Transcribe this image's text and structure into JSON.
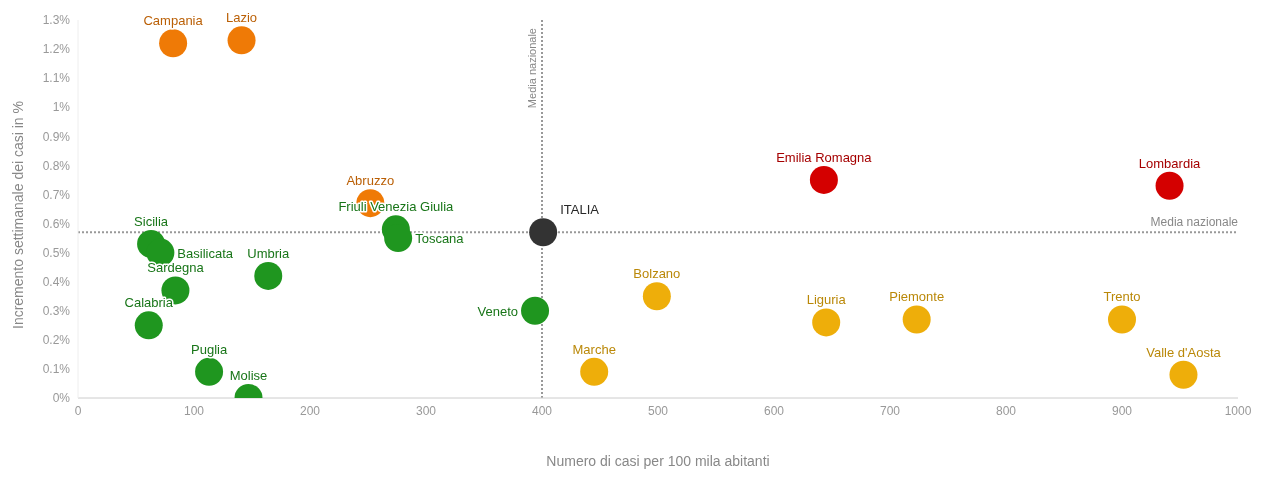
{
  "chart_data": {
    "type": "scatter",
    "xlabel": "Numero di casi per 100 mila abitanti",
    "ylabel": "Incremento settimanale dei casi in %",
    "xlim": [
      0,
      1000
    ],
    "xticks": [
      0,
      100,
      200,
      300,
      400,
      500,
      600,
      700,
      800,
      900,
      1000
    ],
    "ylim": [
      0,
      1.3
    ],
    "yticks": [
      {
        "value": 0,
        "label": "0%"
      },
      {
        "value": 0.1,
        "label": "0.1%"
      },
      {
        "value": 0.2,
        "label": "0.2%"
      },
      {
        "value": 0.3,
        "label": "0.3%"
      },
      {
        "value": 0.4,
        "label": "0.4%"
      },
      {
        "value": 0.5,
        "label": "0.5%"
      },
      {
        "value": 0.6,
        "label": "0.6%"
      },
      {
        "value": 0.7,
        "label": "0.7%"
      },
      {
        "value": 0.8,
        "label": "0.8%"
      },
      {
        "value": 0.9,
        "label": "0.9%"
      },
      {
        "value": 1,
        "label": "1%"
      },
      {
        "value": 1.1,
        "label": "1.1%"
      },
      {
        "value": 1.2,
        "label": "1.2%"
      },
      {
        "value": 1.3,
        "label": "1.3%"
      }
    ],
    "grid": false,
    "legend": false,
    "marker": "circle",
    "ref_lines": [
      {
        "axis": "x",
        "value": 400,
        "label": "Media nazionale",
        "color": "#999999",
        "line_style": "dotted"
      },
      {
        "axis": "y",
        "value": 0.57,
        "label": "Media nazionale",
        "color": "#999999",
        "line_style": "dotted"
      }
    ],
    "series": [
      {
        "color": "#ef7a06",
        "x": [
          82,
          141,
          252
        ],
        "values": [
          1.22,
          1.23,
          0.67
        ],
        "value_labels": [
          "Campania",
          "Lazio",
          "Abruzzo"
        ]
      },
      {
        "color": "#1f961f",
        "x": [
          274,
          276,
          63,
          71,
          164,
          84,
          61,
          113,
          147,
          394
        ],
        "values": [
          0.58,
          0.55,
          0.53,
          0.5,
          0.42,
          0.37,
          0.25,
          0.09,
          0,
          0.3
        ],
        "value_labels": [
          "Friuli Venezia Giulia",
          "Toscana",
          "Sicilia",
          "Basilicata",
          "Umbria",
          "Sardegna",
          "Calabria",
          "Puglia",
          "Molise",
          "Veneto"
        ]
      },
      {
        "color": "#d40000",
        "x": [
          643,
          941
        ],
        "values": [
          0.75,
          0.73
        ],
        "value_labels": [
          "Emilia Romagna",
          "Lombardia"
        ]
      },
      {
        "color": "#eeae0a",
        "x": [
          499,
          645,
          723,
          900,
          445,
          953
        ],
        "values": [
          0.35,
          0.26,
          0.27,
          0.27,
          0.09,
          0.08
        ],
        "value_labels": [
          "Bolzano",
          "Liguria",
          "Piemonte",
          "Trento",
          "Marche",
          "Valle d'Aosta"
        ]
      },
      {
        "color": "#333333",
        "x": [
          401
        ],
        "values": [
          0.57
        ],
        "value_labels": [
          "ITALIA"
        ]
      }
    ]
  }
}
